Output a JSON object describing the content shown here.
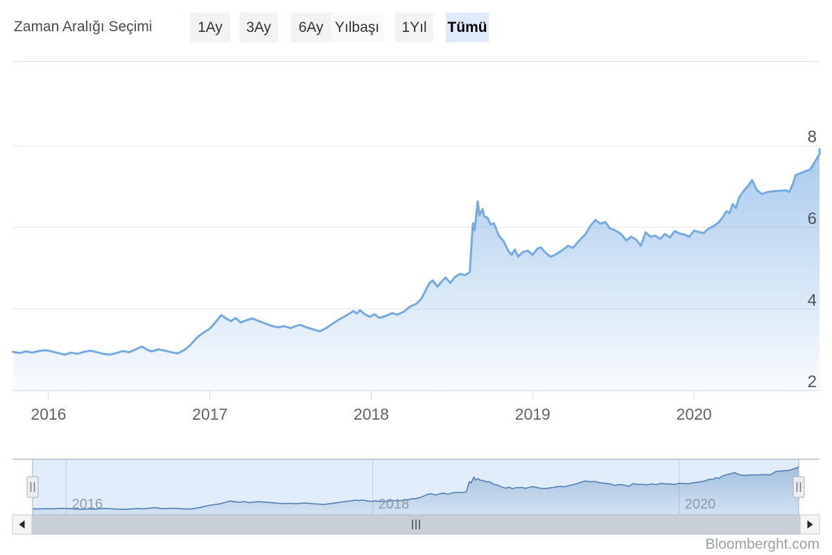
{
  "header": {
    "label": "Zaman Aralığı Seçimi",
    "buttons": [
      {
        "label": "1Ay",
        "selected": false
      },
      {
        "label": "3Ay",
        "selected": false
      },
      {
        "label": "6Ay",
        "selected": false
      },
      {
        "label": "Yılbaşı",
        "selected": false
      },
      {
        "label": "1Yıl",
        "selected": false
      },
      {
        "label": "Tümü",
        "selected": true
      }
    ]
  },
  "watermark": "Bloomberght.com",
  "colors": {
    "series_line": "#73aae1",
    "navigator_line": "#4e7fb5",
    "selected_button_bg": "#dfeafa",
    "grid": "#e4e4e4",
    "axis": "#c8d4e3"
  },
  "chart_data": {
    "type": "area",
    "title": "",
    "xlabel": "",
    "ylabel": "",
    "x_unit": "year",
    "xlim": [
      2015.78,
      2020.79
    ],
    "ylim": [
      2,
      8
    ],
    "x_ticks": [
      2016,
      2017,
      2018,
      2019,
      2020
    ],
    "y_ticks": [
      2,
      4,
      6,
      8
    ],
    "y_axis_side": "right",
    "grid": true,
    "legend": false,
    "navigator_ticks": [
      2016,
      2018,
      2020
    ],
    "points": [
      [
        2015.78,
        2.95
      ],
      [
        2015.82,
        2.92
      ],
      [
        2015.86,
        2.96
      ],
      [
        2015.9,
        2.93
      ],
      [
        2015.94,
        2.97
      ],
      [
        2015.98,
        2.99
      ],
      [
        2016.02,
        2.96
      ],
      [
        2016.06,
        2.92
      ],
      [
        2016.1,
        2.88
      ],
      [
        2016.14,
        2.93
      ],
      [
        2016.18,
        2.9
      ],
      [
        2016.22,
        2.95
      ],
      [
        2016.26,
        2.98
      ],
      [
        2016.3,
        2.94
      ],
      [
        2016.34,
        2.9
      ],
      [
        2016.38,
        2.88
      ],
      [
        2016.42,
        2.92
      ],
      [
        2016.46,
        2.97
      ],
      [
        2016.5,
        2.94
      ],
      [
        2016.54,
        3.01
      ],
      [
        2016.58,
        3.08
      ],
      [
        2016.61,
        3.0
      ],
      [
        2016.64,
        2.96
      ],
      [
        2016.68,
        3.01
      ],
      [
        2016.72,
        2.98
      ],
      [
        2016.76,
        2.94
      ],
      [
        2016.8,
        2.91
      ],
      [
        2016.84,
        2.99
      ],
      [
        2016.88,
        3.12
      ],
      [
        2016.92,
        3.3
      ],
      [
        2016.96,
        3.42
      ],
      [
        2017.0,
        3.52
      ],
      [
        2017.04,
        3.7
      ],
      [
        2017.07,
        3.85
      ],
      [
        2017.1,
        3.77
      ],
      [
        2017.13,
        3.7
      ],
      [
        2017.16,
        3.78
      ],
      [
        2017.19,
        3.67
      ],
      [
        2017.23,
        3.73
      ],
      [
        2017.26,
        3.77
      ],
      [
        2017.3,
        3.71
      ],
      [
        2017.34,
        3.65
      ],
      [
        2017.38,
        3.59
      ],
      [
        2017.42,
        3.55
      ],
      [
        2017.46,
        3.58
      ],
      [
        2017.5,
        3.53
      ],
      [
        2017.53,
        3.58
      ],
      [
        2017.56,
        3.61
      ],
      [
        2017.6,
        3.55
      ],
      [
        2017.64,
        3.5
      ],
      [
        2017.68,
        3.45
      ],
      [
        2017.72,
        3.53
      ],
      [
        2017.76,
        3.64
      ],
      [
        2017.8,
        3.74
      ],
      [
        2017.84,
        3.83
      ],
      [
        2017.87,
        3.9
      ],
      [
        2017.89,
        3.95
      ],
      [
        2017.91,
        3.89
      ],
      [
        2017.93,
        3.97
      ],
      [
        2017.96,
        3.87
      ],
      [
        2017.99,
        3.81
      ],
      [
        2018.02,
        3.87
      ],
      [
        2018.05,
        3.78
      ],
      [
        2018.09,
        3.83
      ],
      [
        2018.13,
        3.9
      ],
      [
        2018.16,
        3.86
      ],
      [
        2018.2,
        3.93
      ],
      [
        2018.24,
        4.06
      ],
      [
        2018.28,
        4.13
      ],
      [
        2018.31,
        4.25
      ],
      [
        2018.34,
        4.48
      ],
      [
        2018.36,
        4.63
      ],
      [
        2018.38,
        4.7
      ],
      [
        2018.41,
        4.55
      ],
      [
        2018.44,
        4.69
      ],
      [
        2018.46,
        4.77
      ],
      [
        2018.49,
        4.64
      ],
      [
        2018.52,
        4.79
      ],
      [
        2018.55,
        4.86
      ],
      [
        2018.58,
        4.83
      ],
      [
        2018.61,
        4.9
      ],
      [
        2018.63,
        6.1
      ],
      [
        2018.64,
        5.93
      ],
      [
        2018.66,
        6.64
      ],
      [
        2018.67,
        6.3
      ],
      [
        2018.69,
        6.45
      ],
      [
        2018.7,
        6.27
      ],
      [
        2018.72,
        6.24
      ],
      [
        2018.74,
        6.07
      ],
      [
        2018.76,
        6.1
      ],
      [
        2018.79,
        5.8
      ],
      [
        2018.82,
        5.66
      ],
      [
        2018.85,
        5.42
      ],
      [
        2018.87,
        5.33
      ],
      [
        2018.89,
        5.46
      ],
      [
        2018.91,
        5.28
      ],
      [
        2018.94,
        5.4
      ],
      [
        2018.97,
        5.43
      ],
      [
        2019.0,
        5.33
      ],
      [
        2019.03,
        5.48
      ],
      [
        2019.05,
        5.51
      ],
      [
        2019.08,
        5.38
      ],
      [
        2019.11,
        5.28
      ],
      [
        2019.14,
        5.33
      ],
      [
        2019.18,
        5.43
      ],
      [
        2019.22,
        5.55
      ],
      [
        2019.25,
        5.5
      ],
      [
        2019.29,
        5.68
      ],
      [
        2019.33,
        5.85
      ],
      [
        2019.36,
        6.05
      ],
      [
        2019.39,
        6.18
      ],
      [
        2019.42,
        6.09
      ],
      [
        2019.45,
        6.13
      ],
      [
        2019.48,
        5.97
      ],
      [
        2019.51,
        5.93
      ],
      [
        2019.55,
        5.83
      ],
      [
        2019.58,
        5.68
      ],
      [
        2019.61,
        5.77
      ],
      [
        2019.64,
        5.71
      ],
      [
        2019.67,
        5.55
      ],
      [
        2019.7,
        5.88
      ],
      [
        2019.73,
        5.77
      ],
      [
        2019.76,
        5.8
      ],
      [
        2019.79,
        5.72
      ],
      [
        2019.82,
        5.84
      ],
      [
        2019.85,
        5.75
      ],
      [
        2019.88,
        5.91
      ],
      [
        2019.91,
        5.85
      ],
      [
        2019.94,
        5.83
      ],
      [
        2019.97,
        5.77
      ],
      [
        2020.0,
        5.92
      ],
      [
        2020.03,
        5.89
      ],
      [
        2020.06,
        5.86
      ],
      [
        2020.09,
        5.97
      ],
      [
        2020.12,
        6.03
      ],
      [
        2020.15,
        6.11
      ],
      [
        2020.18,
        6.26
      ],
      [
        2020.2,
        6.4
      ],
      [
        2020.22,
        6.35
      ],
      [
        2020.24,
        6.57
      ],
      [
        2020.26,
        6.48
      ],
      [
        2020.28,
        6.74
      ],
      [
        2020.31,
        6.91
      ],
      [
        2020.34,
        7.04
      ],
      [
        2020.36,
        7.16
      ],
      [
        2020.39,
        6.91
      ],
      [
        2020.42,
        6.82
      ],
      [
        2020.46,
        6.87
      ],
      [
        2020.5,
        6.89
      ],
      [
        2020.54,
        6.9
      ],
      [
        2020.57,
        6.91
      ],
      [
        2020.59,
        6.87
      ],
      [
        2020.61,
        7.04
      ],
      [
        2020.63,
        7.28
      ],
      [
        2020.66,
        7.33
      ],
      [
        2020.69,
        7.38
      ],
      [
        2020.72,
        7.42
      ],
      [
        2020.74,
        7.55
      ],
      [
        2020.76,
        7.68
      ],
      [
        2020.78,
        7.8
      ],
      [
        2020.79,
        7.92
      ]
    ]
  }
}
